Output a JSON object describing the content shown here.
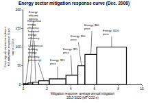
{
  "chart_data": {
    "type": "bar",
    "title": "Energy sector mitigation response curve (Dec. 2008)",
    "x_label": "Mitigation response: average annual mitigation 2013-2020 (MT CO2-e)",
    "y_label": "Price signal required to achieve full mitigation response: $ per tonne CO2-e",
    "bins": [
      0,
      0.4,
      0.8,
      1.3,
      2.2,
      3.6,
      4.6,
      5.2,
      6.2,
      8.7
    ],
    "values": [
      2,
      4,
      6,
      10,
      15,
      25,
      50,
      80,
      100
    ],
    "annotations": [
      "Energy efficient lighting",
      "Residential energy efficiency",
      "Industrial energy efficiency",
      "Commercial building energy efficiency (electricity)",
      "Energy: $15 price",
      "Energy: $25 price",
      "Energy: $50 price",
      "Energy: $80 price",
      "Energy: $100 price"
    ],
    "color": "#ffffff",
    "xlim": [
      0,
      10
    ],
    "xticks": [
      0,
      2,
      4,
      6,
      8,
      10
    ],
    "ylim": [
      0,
      200
    ],
    "yticks": [
      0,
      50,
      100,
      150,
      200
    ],
    "grid": false
  }
}
